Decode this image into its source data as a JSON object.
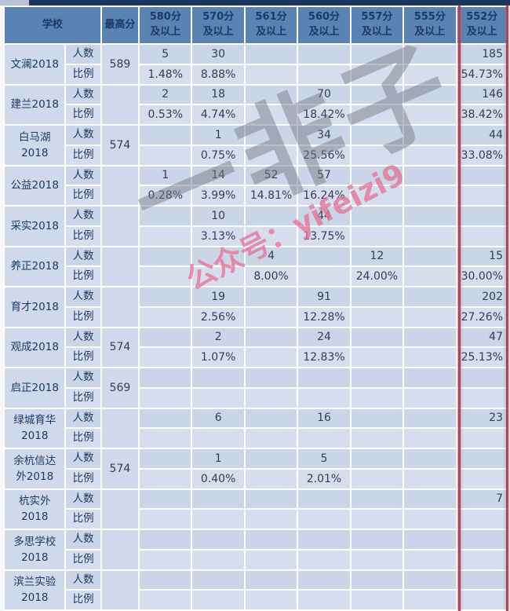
{
  "watermark": {
    "main": "一非子",
    "sub": "公众号：yifeizi9"
  },
  "colors": {
    "header_bg": "#5a82b2",
    "row_count_bg": "#cbd5e8",
    "row_ratio_bg": "#d6ddee",
    "merged_cell_bg": "#d0d9eb",
    "header_text": "#1d3a66",
    "value_text": "#363d52",
    "red_rule": "#a34a57",
    "top_strip": "#1c3561"
  },
  "chart_data": {
    "type": "table",
    "columns": [
      "学校",
      "",
      "最高分",
      "580分及以上",
      "570分及以上",
      "561分及以上",
      "560分及以上",
      "557分及以上",
      "555分及以上",
      "552分及以上"
    ],
    "row_labels": {
      "count": "人数",
      "ratio": "比例"
    },
    "schools": [
      {
        "name": "文澜2018",
        "max": "589",
        "count": [
          "5",
          "30",
          "",
          "",
          "",
          "",
          "185"
        ],
        "ratio": [
          "1.48%",
          "8.88%",
          "",
          "",
          "",
          "",
          "54.73%"
        ]
      },
      {
        "name": "建兰2018",
        "max": "",
        "count": [
          "2",
          "18",
          "",
          "70",
          "",
          "",
          "146"
        ],
        "ratio": [
          "0.53%",
          "4.74%",
          "",
          "18.42%",
          "",
          "",
          "38.42%"
        ]
      },
      {
        "name": "白马湖\n2018",
        "max": "574",
        "count": [
          "",
          "1",
          "",
          "34",
          "",
          "",
          "44"
        ],
        "ratio": [
          "",
          "0.75%",
          "",
          "25.56%",
          "",
          "",
          "33.08%"
        ]
      },
      {
        "name": "公益2018",
        "max": "",
        "count": [
          "1",
          "14",
          "52",
          "57",
          "",
          "",
          ""
        ],
        "ratio": [
          "0.28%",
          "3.99%",
          "14.81%",
          "16.24%",
          "",
          "",
          ""
        ]
      },
      {
        "name": "采实2018",
        "max": "",
        "count": [
          "",
          "10",
          "",
          "44",
          "",
          "",
          ""
        ],
        "ratio": [
          "",
          "3.13%",
          "",
          "13.75%",
          "",
          "",
          ""
        ]
      },
      {
        "name": "养正2018",
        "max": "",
        "count": [
          "",
          "",
          "4",
          "",
          "12",
          "",
          "15"
        ],
        "ratio": [
          "",
          "",
          "8.00%",
          "",
          "24.00%",
          "",
          "30.00%"
        ]
      },
      {
        "name": "育才2018",
        "max": "",
        "count": [
          "",
          "19",
          "",
          "91",
          "",
          "",
          "202"
        ],
        "ratio": [
          "",
          "2.56%",
          "",
          "12.28%",
          "",
          "",
          "27.26%"
        ]
      },
      {
        "name": "观成2018",
        "max": "574",
        "count": [
          "",
          "2",
          "",
          "24",
          "",
          "",
          "47"
        ],
        "ratio": [
          "",
          "1.07%",
          "",
          "12.83%",
          "",
          "",
          "25.13%"
        ]
      },
      {
        "name": "启正2018",
        "max": "569",
        "count": [
          "",
          "",
          "",
          "",
          "",
          "",
          ""
        ],
        "ratio": [
          "",
          "",
          "",
          "",
          "",
          "",
          ""
        ]
      },
      {
        "name": "绿城育华\n2018",
        "max": "",
        "count": [
          "",
          "6",
          "",
          "16",
          "",
          "",
          "23"
        ],
        "ratio": [
          "",
          "",
          "",
          "",
          "",
          "",
          ""
        ]
      },
      {
        "name": "余杭信达\n外2018",
        "max": "574",
        "count": [
          "",
          "1",
          "",
          "5",
          "",
          "",
          ""
        ],
        "ratio": [
          "",
          "0.40%",
          "",
          "2.01%",
          "",
          "",
          ""
        ]
      },
      {
        "name": "杭实外\n2018",
        "max": "",
        "count": [
          "",
          "",
          "",
          "",
          "",
          "",
          "7"
        ],
        "ratio": [
          "",
          "",
          "",
          "",
          "",
          "",
          ""
        ]
      },
      {
        "name": "多思学校\n2018",
        "max": "",
        "count": [
          "",
          "",
          "",
          "",
          "",
          "",
          ""
        ],
        "ratio": [
          "",
          "",
          "",
          "",
          "",
          "",
          ""
        ]
      },
      {
        "name": "滨兰实验\n2018",
        "max": "",
        "count": [
          "",
          "",
          "",
          "",
          "",
          "",
          ""
        ],
        "ratio": [
          "",
          "",
          "",
          "",
          "",
          "",
          ""
        ]
      }
    ]
  }
}
